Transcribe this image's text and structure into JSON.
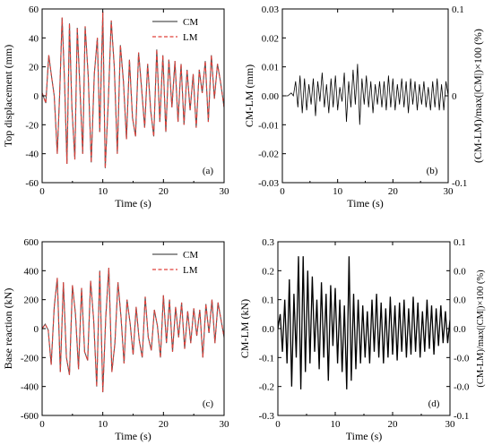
{
  "chart_data": [
    {
      "panel": "(a)",
      "type": "line",
      "xlabel": "Time (s)",
      "ylabel": "Top displacement (mm)",
      "xlim": [
        0,
        30
      ],
      "ylim": [
        -60,
        60
      ],
      "xticks": [
        "0",
        "10",
        "20",
        "30"
      ],
      "yticks": [
        "-60",
        "-40",
        "-20",
        "0",
        "20",
        "40",
        "60"
      ],
      "legend": "top-right",
      "series": [
        {
          "name": "CM",
          "color": "#555555",
          "style": "solid"
        },
        {
          "name": "LM",
          "color": "#e0403a",
          "style": "dashed"
        }
      ],
      "x": [
        0,
        0.6,
        1.1,
        1.6,
        2.0,
        2.5,
        2.9,
        3.3,
        3.7,
        4.1,
        4.5,
        4.9,
        5.4,
        5.8,
        6.2,
        6.7,
        7.1,
        7.6,
        8.1,
        8.6,
        9.1,
        9.5,
        10.0,
        10.4,
        10.9,
        11.4,
        11.9,
        12.4,
        12.9,
        13.4,
        13.9,
        14.4,
        14.9,
        15.4,
        15.9,
        16.4,
        16.9,
        17.4,
        17.9,
        18.4,
        18.9,
        19.4,
        19.9,
        20.4,
        20.9,
        21.4,
        21.9,
        22.4,
        22.9,
        23.4,
        23.9,
        24.4,
        24.9,
        25.4,
        25.9,
        26.4,
        26.9,
        27.4,
        27.9,
        28.4,
        28.9,
        29.4,
        30.0
      ],
      "y": [
        2,
        -5,
        28,
        12,
        0,
        -40,
        2,
        54,
        10,
        -47,
        50,
        -8,
        -44,
        47,
        8,
        -40,
        48,
        14,
        -46,
        15,
        40,
        -25,
        58,
        -50,
        -4,
        52,
        20,
        -40,
        35,
        10,
        -30,
        25,
        -15,
        -28,
        30,
        5,
        -22,
        22,
        -10,
        -28,
        32,
        -18,
        28,
        -25,
        25,
        -8,
        24,
        -18,
        22,
        -20,
        18,
        -10,
        15,
        -22,
        18,
        2,
        24,
        -18,
        28,
        -2,
        22,
        10,
        -8
      ]
    },
    {
      "panel": "(b)",
      "type": "line",
      "xlabel": "Time (s)",
      "ylabel": "CM-LM (mm)",
      "ylabel_right": "(CM-LM)/max(|CM|)×100 (%)",
      "xlim": [
        0,
        30
      ],
      "ylim": [
        -0.03,
        0.03
      ],
      "xticks": [
        "0",
        "10",
        "20",
        "30"
      ],
      "yticks": [
        "-0.03",
        "-0.02",
        "-0.01",
        "0.00",
        "0.01",
        "0.02",
        "0.03"
      ],
      "yticks_right": [
        "-0.1",
        "0",
        "0.1"
      ],
      "series": [
        {
          "color": "#000000"
        }
      ],
      "x": [
        0,
        1.0,
        1.6,
        2.0,
        2.4,
        2.8,
        3.2,
        3.6,
        4.0,
        4.4,
        4.8,
        5.2,
        5.6,
        6.0,
        6.4,
        6.8,
        7.2,
        7.6,
        8.0,
        8.4,
        8.8,
        9.2,
        9.6,
        10.0,
        10.4,
        10.8,
        11.2,
        11.6,
        12.0,
        12.4,
        12.8,
        13.2,
        13.6,
        14.0,
        14.4,
        14.8,
        15.2,
        15.6,
        16.0,
        16.4,
        16.8,
        17.2,
        17.6,
        18.0,
        18.4,
        18.8,
        19.2,
        19.6,
        20.0,
        20.4,
        20.8,
        21.2,
        21.6,
        22.0,
        22.4,
        22.8,
        23.2,
        23.6,
        24.0,
        24.4,
        24.8,
        25.2,
        25.6,
        26.0,
        26.4,
        26.8,
        27.2,
        27.6,
        28.0,
        28.4,
        28.8,
        29.2,
        29.6,
        30.0
      ],
      "y": [
        0.0,
        0.0,
        0.001,
        0.0,
        0.005,
        -0.004,
        0.007,
        -0.006,
        0.006,
        -0.005,
        0.004,
        -0.003,
        0.006,
        -0.007,
        0.005,
        -0.002,
        0.008,
        -0.004,
        0.004,
        -0.006,
        0.006,
        -0.004,
        0.007,
        -0.005,
        0.003,
        -0.002,
        0.008,
        -0.009,
        0.005,
        -0.004,
        0.009,
        -0.003,
        0.011,
        -0.01,
        0.006,
        -0.003,
        0.007,
        -0.004,
        0.005,
        -0.006,
        0.004,
        -0.003,
        0.005,
        -0.004,
        0.005,
        -0.005,
        0.007,
        -0.004,
        0.006,
        -0.005,
        0.004,
        -0.003,
        0.006,
        -0.004,
        0.005,
        -0.006,
        0.006,
        -0.003,
        0.005,
        -0.005,
        0.004,
        -0.003,
        0.005,
        -0.004,
        0.003,
        -0.005,
        0.005,
        -0.004,
        0.006,
        -0.005,
        0.004,
        -0.005,
        0.005,
        0.0
      ]
    },
    {
      "panel": "(c)",
      "type": "line",
      "xlabel": "Time (s)",
      "ylabel": "Base reaction (kN)",
      "xlim": [
        0,
        30
      ],
      "ylim": [
        -600,
        600
      ],
      "xticks": [
        "0",
        "10",
        "20",
        "30"
      ],
      "yticks": [
        "-600",
        "-400",
        "-200",
        "0",
        "200",
        "400",
        "600"
      ],
      "legend": "top-right",
      "series": [
        {
          "name": "CM",
          "color": "#555555",
          "style": "solid"
        },
        {
          "name": "LM",
          "color": "#e0403a",
          "style": "dashed"
        }
      ],
      "x": [
        0,
        0.5,
        1.0,
        1.5,
        2.0,
        2.5,
        3.0,
        3.5,
        4.0,
        4.5,
        5.0,
        5.5,
        6.0,
        6.5,
        7.0,
        7.5,
        8.0,
        8.5,
        9.0,
        9.5,
        10.0,
        10.5,
        11.0,
        11.5,
        12.0,
        12.5,
        13.0,
        13.5,
        14.0,
        14.5,
        15.0,
        15.5,
        16.0,
        16.5,
        17.0,
        17.5,
        18.0,
        18.5,
        19.0,
        19.5,
        20.0,
        20.5,
        21.0,
        21.5,
        22.0,
        22.5,
        23.0,
        23.5,
        24.0,
        24.5,
        25.0,
        25.5,
        26.0,
        26.5,
        27.0,
        27.5,
        28.0,
        28.5,
        29.0,
        29.5,
        30.0
      ],
      "y": [
        0,
        30,
        -10,
        -250,
        150,
        350,
        -300,
        320,
        -200,
        -320,
        300,
        100,
        -280,
        280,
        -160,
        -220,
        330,
        60,
        -400,
        400,
        -440,
        80,
        420,
        -300,
        -100,
        320,
        80,
        -240,
        200,
        40,
        -180,
        150,
        -80,
        -200,
        220,
        -60,
        -150,
        130,
        20,
        -200,
        230,
        -100,
        200,
        -160,
        150,
        -60,
        180,
        -140,
        120,
        -100,
        140,
        -50,
        130,
        -200,
        170,
        -30,
        200,
        -100,
        180,
        60,
        -60
      ]
    },
    {
      "panel": "(d)",
      "type": "line",
      "xlabel": "Time (s)",
      "ylabel": "CM-LM (kN)",
      "ylabel_right": "(CM-LM)/max(|CM|)×100 (%)",
      "xlim": [
        0,
        30
      ],
      "ylim": [
        -0.3,
        0.3
      ],
      "xticks": [
        "0",
        "10",
        "20",
        "30"
      ],
      "yticks": [
        "-0.3",
        "-0.2",
        "-0.1",
        "0.0",
        "0.1",
        "0.2",
        "0.3"
      ],
      "yticks_right": [
        "-0.1",
        "-0.0",
        "-0.0",
        "0.0",
        "0.0",
        "0.0",
        "0.1"
      ],
      "series": [
        {
          "color": "#000000"
        }
      ],
      "x": [
        0,
        0.4,
        0.8,
        1.2,
        1.6,
        2.0,
        2.4,
        2.8,
        3.2,
        3.6,
        4.0,
        4.4,
        4.8,
        5.2,
        5.6,
        6.0,
        6.4,
        6.8,
        7.2,
        7.6,
        8.0,
        8.4,
        8.8,
        9.2,
        9.6,
        10.0,
        10.4,
        10.8,
        11.2,
        11.6,
        12.0,
        12.4,
        12.8,
        13.2,
        13.6,
        14.0,
        14.4,
        14.8,
        15.2,
        15.6,
        16.0,
        16.4,
        16.8,
        17.2,
        17.6,
        18.0,
        18.4,
        18.8,
        19.2,
        19.6,
        20.0,
        20.4,
        20.8,
        21.2,
        21.6,
        22.0,
        22.4,
        22.8,
        23.2,
        23.6,
        24.0,
        24.4,
        24.8,
        25.2,
        25.6,
        26.0,
        26.4,
        26.8,
        27.2,
        27.6,
        28.0,
        28.4,
        28.8,
        29.2,
        29.6,
        30.0
      ],
      "y": [
        0.0,
        0.05,
        -0.08,
        0.1,
        -0.12,
        0.17,
        -0.2,
        0.12,
        -0.1,
        0.25,
        -0.21,
        0.25,
        -0.15,
        0.2,
        -0.12,
        0.18,
        -0.08,
        0.1,
        -0.14,
        0.16,
        -0.1,
        0.12,
        -0.18,
        0.15,
        -0.06,
        0.14,
        -0.12,
        0.1,
        -0.15,
        0.08,
        -0.21,
        0.25,
        -0.18,
        0.12,
        -0.14,
        0.1,
        -0.12,
        0.08,
        -0.1,
        0.06,
        -0.12,
        0.1,
        -0.08,
        0.12,
        -0.1,
        0.09,
        -0.12,
        0.07,
        -0.1,
        0.11,
        -0.09,
        0.08,
        -0.11,
        0.09,
        -0.08,
        0.1,
        -0.1,
        0.07,
        -0.09,
        0.11,
        -0.08,
        0.09,
        -0.1,
        0.06,
        -0.08,
        0.1,
        -0.07,
        0.08,
        -0.09,
        0.07,
        -0.06,
        0.08,
        -0.05,
        0.06,
        -0.05,
        0.03
      ]
    }
  ]
}
